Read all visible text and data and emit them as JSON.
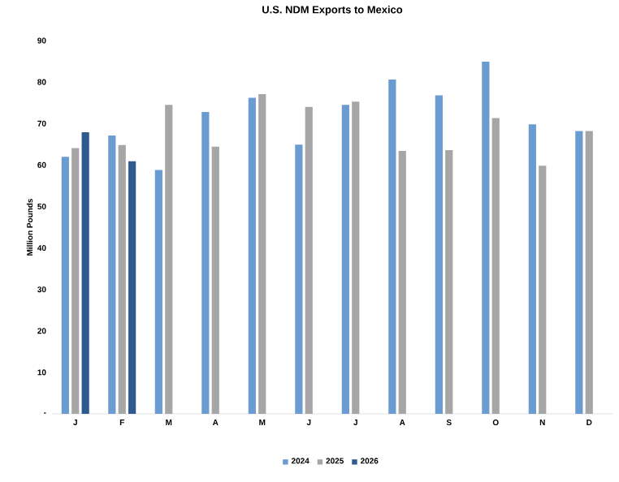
{
  "chart_data": {
    "type": "bar",
    "title": "U.S. NDM Exports to Mexico",
    "ylabel": "Million Pounds",
    "categories": [
      "J",
      "F",
      "M",
      "A",
      "M",
      "J",
      "J",
      "A",
      "S",
      "O",
      "N",
      "D"
    ],
    "series": [
      {
        "name": "2024",
        "color": "#6a9bd1",
        "values": [
          62.0,
          67.1,
          58.8,
          72.8,
          76.2,
          64.9,
          74.5,
          80.6,
          76.8,
          84.9,
          69.8,
          68.2
        ]
      },
      {
        "name": "2025",
        "color": "#a6a6a6",
        "values": [
          64.1,
          64.8,
          74.5,
          64.4,
          77.1,
          74.0,
          75.3,
          63.4,
          63.6,
          71.3,
          59.8,
          68.2
        ]
      },
      {
        "name": "2026",
        "color": "#2e5a8e",
        "values": [
          67.9,
          60.9,
          null,
          null,
          null,
          null,
          null,
          null,
          null,
          null,
          null,
          null
        ]
      }
    ],
    "ylim": [
      0,
      90
    ],
    "yticks": [
      {
        "value": 0,
        "label": "-"
      },
      10,
      20,
      30,
      40,
      50,
      60,
      70,
      80,
      90
    ],
    "grid": false,
    "legend": "bottom"
  }
}
